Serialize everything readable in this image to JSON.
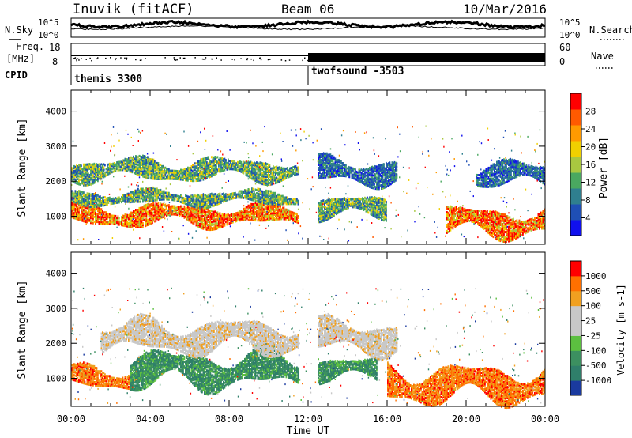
{
  "header": {
    "station": "Inuvik (fitACF)",
    "beam": "Beam 06",
    "date": "10/Mar/2016"
  },
  "summary_panels": {
    "nsky_label": "N.Sky",
    "nsearch_label": "N.Search",
    "freq_label_1": "Freq.",
    "freq_label_2": "[MHz]",
    "nave_label": "Nave",
    "cpid_label": "CPID",
    "noise_ticks": [
      "10^5",
      "10^0"
    ],
    "freq_ticks": [
      "18",
      "8"
    ],
    "nave_ticks": [
      "60",
      "0"
    ],
    "cpid_segments": [
      {
        "name": "themis 3300",
        "start": 0,
        "end": 12
      },
      {
        "name": "twofsound -3503",
        "start": 12,
        "end": 24
      }
    ]
  },
  "colors": {
    "power_scale": [
      "#1010ee",
      "#1f4fb5",
      "#2f7f8f",
      "#4aa860",
      "#a9c840",
      "#f0d000",
      "#ff9a00",
      "#ff5a00",
      "#ff0000"
    ],
    "velocity_scale": [
      "#1a3a9f",
      "#2f7f6a",
      "#3c9060",
      "#5cc040",
      "#c8c8c8",
      "#c8c8c8",
      "#f0a020",
      "#ff7000",
      "#ff0000"
    ]
  },
  "chart_data": [
    {
      "type": "heatmap",
      "name": "power",
      "xlabel": "",
      "ylabel": "Slant Range [km]",
      "x_range": [
        0,
        24
      ],
      "x_unit": "hours UT",
      "ylim": [
        200,
        4600
      ],
      "yticks": [
        1000,
        2000,
        3000,
        4000
      ],
      "colorbar": {
        "label": "Power [dB]",
        "range": [
          0,
          32
        ],
        "ticks": [
          "4",
          "8",
          "12",
          "16",
          "20",
          "24",
          "28"
        ]
      },
      "features": [
        {
          "t0": 0.0,
          "t1": 11.5,
          "r0": 700,
          "r1": 1300,
          "level": "high"
        },
        {
          "t0": 0.0,
          "t1": 11.5,
          "r0": 1300,
          "r1": 1700,
          "level": "medium"
        },
        {
          "t0": 0.0,
          "t1": 11.5,
          "r0": 2000,
          "r1": 2600,
          "level": "medium"
        },
        {
          "t0": 12.5,
          "t1": 16.0,
          "r0": 900,
          "r1": 1500,
          "level": "medium"
        },
        {
          "t0": 12.5,
          "t1": 16.5,
          "r0": 1900,
          "r1": 2600,
          "level": "low"
        },
        {
          "t0": 19.0,
          "t1": 24.0,
          "r0": 400,
          "r1": 1200,
          "level": "high"
        },
        {
          "t0": 20.5,
          "t1": 24.0,
          "r0": 1800,
          "r1": 2500,
          "level": "low"
        }
      ]
    },
    {
      "type": "heatmap",
      "name": "velocity",
      "xlabel": "Time UT",
      "ylabel": "Slant Range [km]",
      "x_range": [
        0,
        24
      ],
      "x_unit": "hours UT",
      "xticks": [
        "00:00",
        "04:00",
        "08:00",
        "12:00",
        "16:00",
        "20:00",
        "00:00"
      ],
      "ylim": [
        200,
        4600
      ],
      "yticks": [
        1000,
        2000,
        3000,
        4000
      ],
      "colorbar": {
        "label": "Velocity [m s-1]",
        "ticks": [
          "1000",
          "500",
          "100",
          "25",
          "-25",
          "-100",
          "-500",
          "-1000"
        ]
      },
      "features": [
        {
          "t0": 0.0,
          "t1": 3.0,
          "r0": 700,
          "r1": 1300,
          "level": "away_fast"
        },
        {
          "t0": 3.0,
          "t1": 11.5,
          "r0": 700,
          "r1": 1700,
          "level": "toward_slow"
        },
        {
          "t0": 1.5,
          "t1": 11.5,
          "r0": 1700,
          "r1": 2600,
          "level": "near_zero"
        },
        {
          "t0": 12.5,
          "t1": 16.5,
          "r0": 1700,
          "r1": 2600,
          "level": "near_zero"
        },
        {
          "t0": 12.5,
          "t1": 15.5,
          "r0": 900,
          "r1": 1500,
          "level": "toward_slow"
        },
        {
          "t0": 16.0,
          "t1": 24.0,
          "r0": 300,
          "r1": 1300,
          "level": "away_fast"
        }
      ]
    }
  ]
}
